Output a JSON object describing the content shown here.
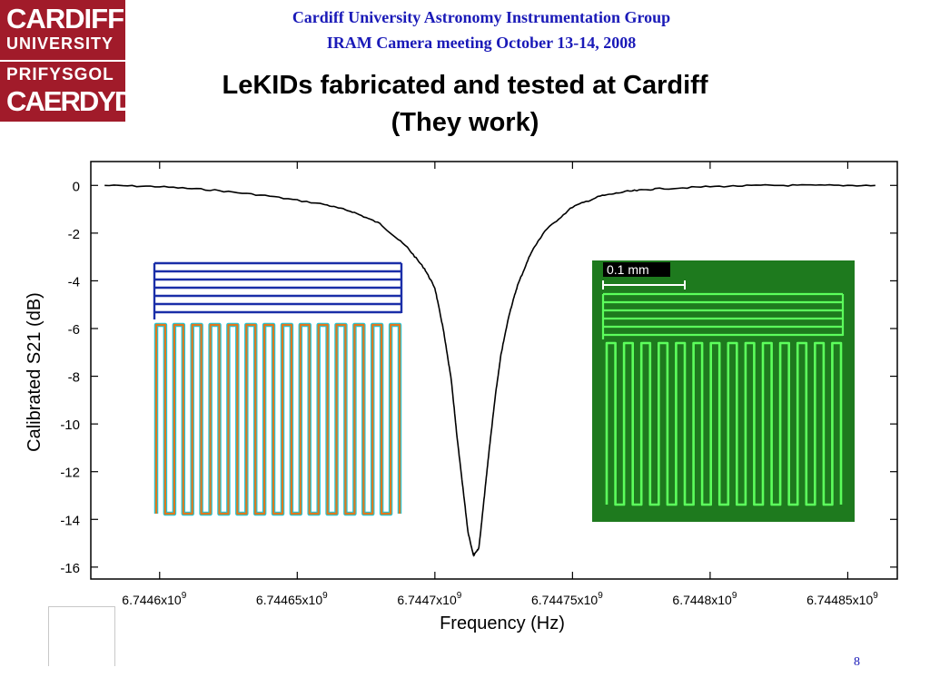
{
  "logo": {
    "line1": "CARDIFF",
    "line2": "UNIVERSITY",
    "line3": "PRIFYSGOL",
    "line4": "CAERDYDD",
    "color": "#a11b2a"
  },
  "header": {
    "line1": "Cardiff University Astronomy Instrumentation Group",
    "line2": "IRAM Camera meeting October 13-14, 2008"
  },
  "title": {
    "line1": "LeKIDs fabricated and tested at Cardiff",
    "line2": "(They work)"
  },
  "page_number": "8",
  "scale_label": "0.1 mm",
  "chart_data": {
    "type": "line",
    "xlabel": "Frequency (Hz)",
    "ylabel": "Calibrated S21 (dB)",
    "xlim": [
      6744575000.0,
      6744868000.0
    ],
    "ylim": [
      -16.5,
      1.0
    ],
    "x_ticks": [
      6744600000.0,
      6744650000.0,
      6744700000.0,
      6744750000.0,
      6744800000.0,
      6744850000.0
    ],
    "x_tick_labels": [
      "6.7446x10",
      "6.74465x10",
      "6.7447x10",
      "6.74475x10",
      "6.7448x10",
      "6.74485x10"
    ],
    "x_tick_exponent": "9",
    "y_ticks": [
      0,
      -2,
      -4,
      -6,
      -8,
      -10,
      -12,
      -14,
      -16
    ],
    "y_tick_labels": [
      "0",
      "-2",
      "-4",
      "-6",
      "-8",
      "-10",
      "-12",
      "-14",
      "-16"
    ],
    "grid": false,
    "series": [
      {
        "color": "#000000",
        "x": [
          6744580000.0,
          6744600000.0,
          6744620000.0,
          6744640000.0,
          6744660000.0,
          6744670000.0,
          6744680000.0,
          6744690000.0,
          6744696290.0,
          6744700000.0,
          6744703000.0,
          6744706000.0,
          6744708000.0,
          6744710000.0,
          6744712000.0,
          6744714000.0,
          6744716000.0,
          6744718000.0,
          6744720000.0,
          6744722000.0,
          6744724000.0,
          6744727000.0,
          6744730000.0,
          6744735000.0,
          6744740000.0,
          6744750000.0,
          6744760000.0,
          6744770000.0,
          6744780000.0,
          6744800000.0,
          6744820000.0,
          6744840000.0,
          6744860000.0
        ],
        "y": [
          0.0,
          -0.05,
          -0.2,
          -0.45,
          -0.8,
          -1.1,
          -1.6,
          -2.6,
          -3.5,
          -4.3,
          -6.0,
          -8.2,
          -10.5,
          -12.5,
          -14.5,
          -15.5,
          -15.2,
          -13.0,
          -10.8,
          -8.8,
          -7.1,
          -5.4,
          -4.2,
          -2.8,
          -1.9,
          -0.9,
          -0.45,
          -0.25,
          -0.15,
          -0.05,
          0.0,
          0.0,
          0.0
        ]
      }
    ]
  },
  "insets": {
    "design": {
      "blue": "#1a2ea8",
      "orange": "#e0781e",
      "cyan": "#23c8d8"
    },
    "photo": {
      "background": "#1e7a1e",
      "trace": "#5cff5c"
    }
  }
}
